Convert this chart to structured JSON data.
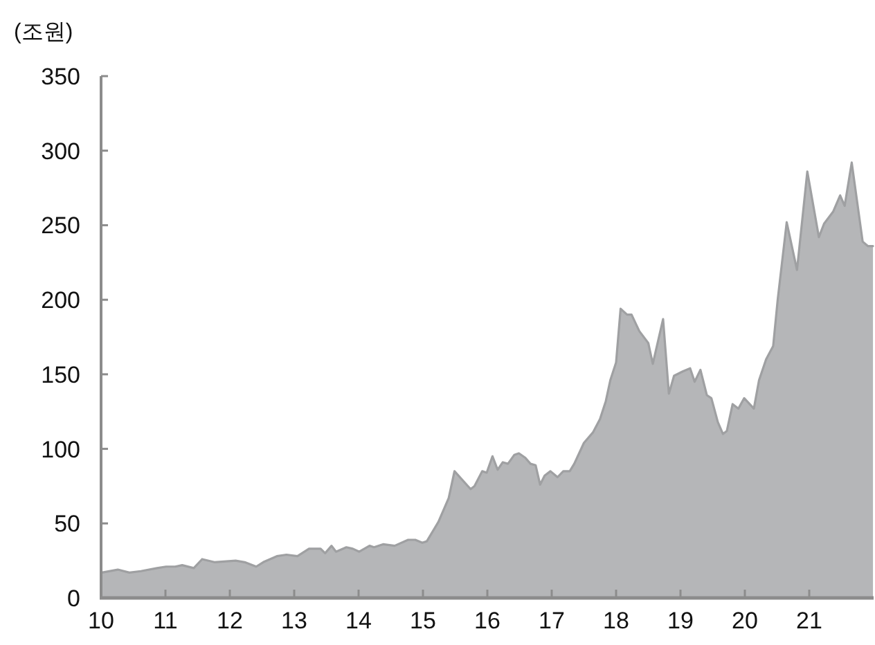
{
  "chart_data": {
    "type": "area",
    "ylabel": "(조원)",
    "xlim": [
      10,
      22
    ],
    "xticks": [
      10,
      11,
      12,
      13,
      14,
      15,
      16,
      17,
      18,
      19,
      20,
      21
    ],
    "ylim": [
      0,
      350
    ],
    "yticks": [
      0,
      50,
      100,
      150,
      200,
      250,
      300,
      350
    ],
    "grid": false,
    "legend": false,
    "series": [
      {
        "color": "#b5b6b8",
        "x": [
          10.01,
          10.26,
          10.44,
          10.62,
          10.87,
          11.01,
          11.15,
          11.26,
          11.44,
          11.57,
          11.76,
          12.09,
          12.23,
          12.41,
          12.52,
          12.73,
          12.88,
          13.05,
          13.23,
          13.41,
          13.48,
          13.58,
          13.65,
          13.81,
          13.91,
          14.01,
          14.17,
          14.24,
          14.38,
          14.56,
          14.77,
          14.88,
          14.99,
          15.06,
          15.24,
          15.4,
          15.49,
          15.74,
          15.8,
          15.92,
          15.99,
          16.08,
          16.16,
          16.24,
          16.32,
          16.42,
          16.49,
          16.59,
          16.67,
          16.75,
          16.82,
          16.89,
          16.98,
          17.09,
          17.18,
          17.28,
          17.35,
          17.5,
          17.64,
          17.75,
          17.84,
          17.91,
          18.0,
          18.07,
          18.17,
          18.24,
          18.36,
          18.5,
          18.57,
          18.73,
          18.82,
          18.9,
          19.04,
          19.15,
          19.22,
          19.31,
          19.41,
          19.48,
          19.58,
          19.66,
          19.72,
          19.81,
          19.9,
          19.99,
          20.14,
          20.22,
          20.33,
          20.44,
          20.51,
          20.65,
          20.81,
          20.97,
          21.15,
          21.23,
          21.37,
          21.48,
          21.55,
          21.66,
          21.83,
          21.91,
          21.99
        ],
        "values": [
          17,
          19,
          17,
          18,
          20,
          21,
          21,
          22,
          20,
          26,
          24,
          25,
          24,
          21,
          24,
          28,
          29,
          28,
          33,
          33,
          30,
          35,
          31,
          34,
          33,
          31,
          35,
          34,
          36,
          35,
          39,
          39,
          37,
          38,
          51,
          67,
          85,
          73,
          75,
          85,
          84,
          95,
          86,
          91,
          90,
          96,
          97,
          94,
          90,
          89,
          76,
          82,
          85,
          81,
          85,
          85,
          90,
          104,
          111,
          120,
          132,
          146,
          158,
          194,
          190,
          190,
          179,
          171,
          157,
          187,
          137,
          149,
          152,
          154,
          145,
          153,
          136,
          134,
          118,
          110,
          112,
          130,
          127,
          134,
          127,
          146,
          160,
          169,
          200,
          252,
          220,
          286,
          242,
          251,
          259,
          270,
          263,
          292,
          239,
          236,
          236
        ]
      }
    ]
  }
}
